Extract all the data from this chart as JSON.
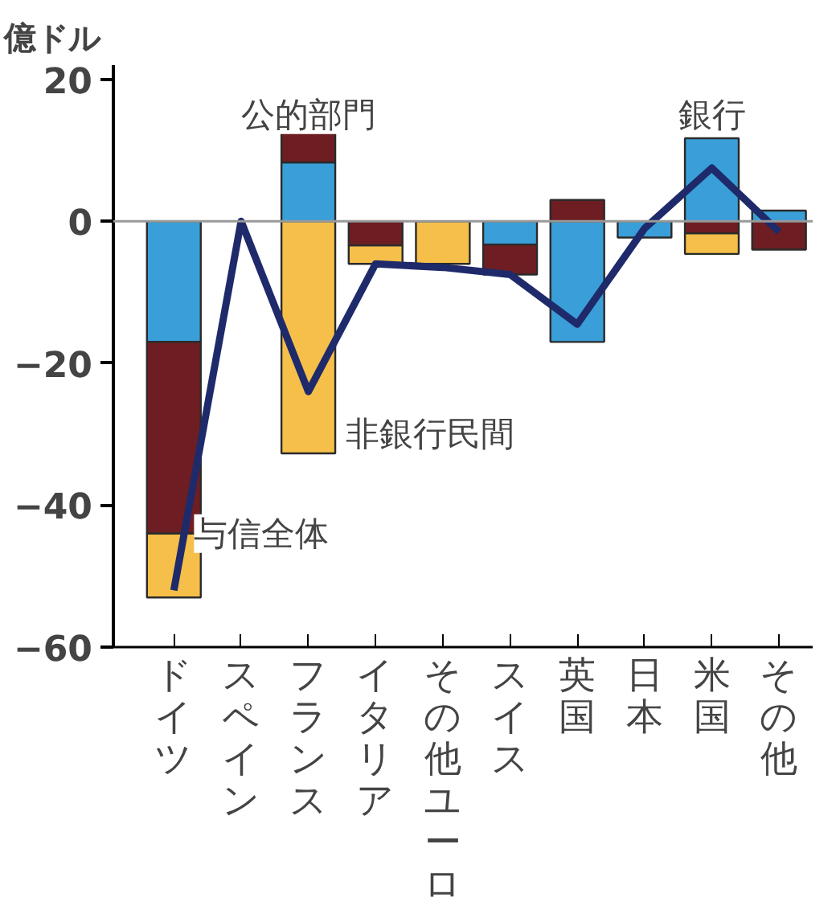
{
  "chart_data": {
    "type": "bar",
    "stacked": true,
    "ylabel": "億ドル",
    "categories": [
      "ドイツ",
      "スペイン",
      "フランス",
      "イタリア",
      "その他ユーロ",
      "スイス",
      "英国",
      "日本",
      "米国",
      "その他"
    ],
    "series": [
      {
        "name": "銀行",
        "color": "#3a9fd8",
        "values": [
          -17,
          null,
          8.3,
          null,
          null,
          -3.3,
          -17,
          -2.3,
          11.7,
          1.5
        ]
      },
      {
        "name": "公的部門",
        "color": "#6e1e22",
        "values": [
          -27,
          null,
          4.4,
          -3.4,
          null,
          -4.2,
          3,
          null,
          -1.7,
          -4
        ]
      },
      {
        "name": "非銀行民間",
        "color": "#f5bf4a",
        "values": [
          -9,
          null,
          -32.7,
          -2.6,
          -6,
          null,
          null,
          null,
          -2.9,
          null
        ]
      },
      {
        "name": "与信全体",
        "type": "line",
        "color": "#1f2a6b",
        "values": [
          -52,
          0,
          -24,
          -6,
          -6.5,
          -7.5,
          -14.5,
          -1,
          7.5,
          -1.5
        ]
      }
    ],
    "ylim": [
      -60,
      22
    ],
    "yticks": [
      -60,
      -40,
      -20,
      0,
      20
    ],
    "ref_lines": [
      {
        "axis": "y",
        "value": 0,
        "color": "#999999"
      }
    ],
    "grid": false
  }
}
